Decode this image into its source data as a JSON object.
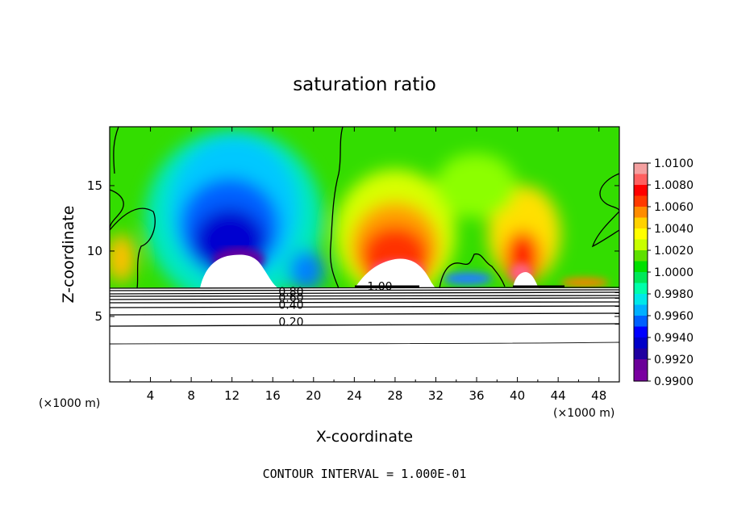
{
  "chart_data": {
    "type": "heatmap",
    "title": "saturation ratio",
    "xlabel": "X-coordinate",
    "ylabel": "Z-coordinate",
    "x_unit": "(×1000 m)",
    "x_unit_right": "(×1000 m)",
    "xlim": [
      0,
      50
    ],
    "ylim": [
      0,
      19.5
    ],
    "x_ticks": [
      4,
      8,
      12,
      16,
      20,
      24,
      28,
      32,
      36,
      40,
      44,
      48
    ],
    "y_ticks": [
      5,
      10,
      15
    ],
    "colorbar": {
      "range": [
        0.99,
        1.01
      ],
      "tick_labels": [
        "1.0100",
        "1.0080",
        "1.0060",
        "1.0040",
        "1.0020",
        "1.0000",
        "0.9980",
        "0.9960",
        "0.9940",
        "0.9920",
        "0.9900"
      ],
      "colors": [
        "#f4a0a0",
        "#ff6060",
        "#ff0000",
        "#ff3a00",
        "#ff8c00",
        "#ffd200",
        "#ffff00",
        "#c8ff00",
        "#5fe000",
        "#00e000",
        "#00e85a",
        "#00ffaa",
        "#00e8e8",
        "#00b0ff",
        "#0060ff",
        "#0000ff",
        "#0000c8",
        "#2000a0",
        "#6a0098",
        "#7a00a0"
      ]
    },
    "contour_labels": [
      {
        "text": "1.00",
        "x": 26.5,
        "y": 7.3
      },
      {
        "text": "0.80",
        "x": 17.8,
        "y": 6.9
      },
      {
        "text": "0.60",
        "x": 17.8,
        "y": 6.45
      },
      {
        "text": "0.40",
        "x": 17.8,
        "y": 5.9
      },
      {
        "text": "0.20",
        "x": 17.8,
        "y": 4.6
      }
    ],
    "contour_interval_text": "CONTOUR INTERVAL = 1.000E-01"
  }
}
